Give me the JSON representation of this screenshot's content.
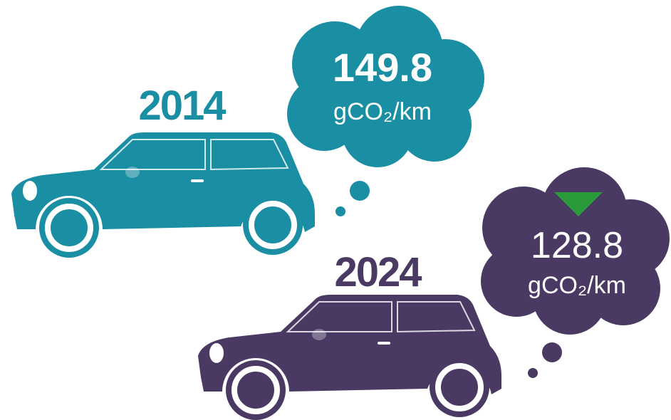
{
  "items": [
    {
      "year": "2014",
      "value": 149.8,
      "unit": "gCO₂/km"
    },
    {
      "year": "2024",
      "value": 128.8,
      "unit": "gCO₂/km"
    }
  ]
}
